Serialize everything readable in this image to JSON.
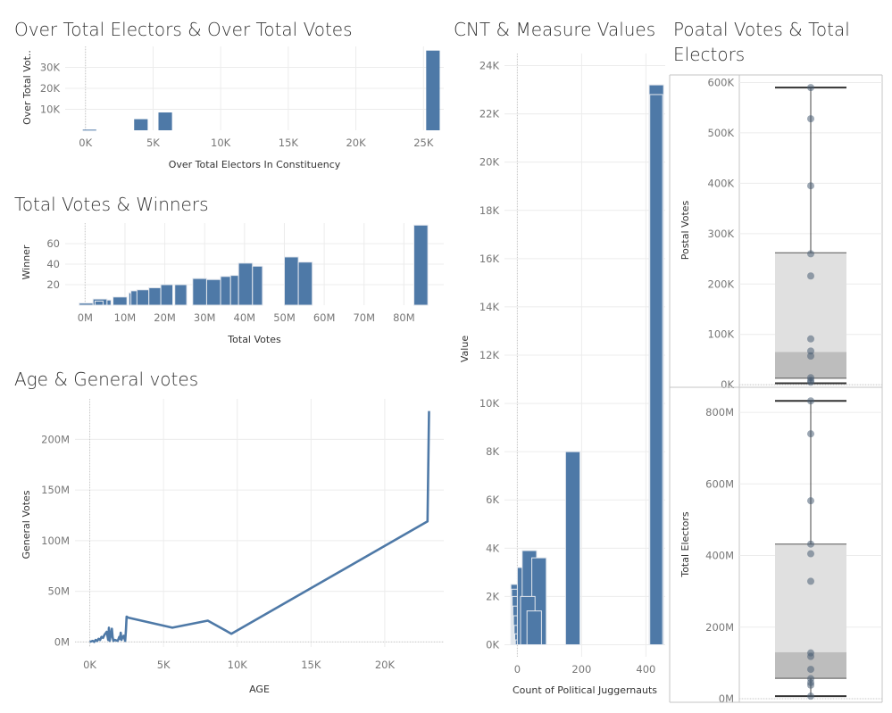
{
  "titles": {
    "electors": "Over Total Electors & Over Total Votes",
    "winners": "Total Votes & Winners",
    "age": "Age & General votes",
    "cnt": "CNT & Measure Values",
    "postal_line1": "Poatal Votes & Total",
    "postal_line2": "Electors"
  },
  "colors": {
    "bar": "#4e79a7",
    "line": "#4e79a7",
    "box_upper": "#e0e0e0",
    "box_lower": "#bdbdbd",
    "point": "#4a5f75"
  },
  "chart_data": [
    {
      "id": "electors",
      "type": "bar",
      "title": "Over Total Electors & Over Total Votes",
      "xlabel": "Over Total Electors  In Constituency",
      "ylabel": "Over Total Vot..",
      "xlim": [
        -1500,
        26500
      ],
      "ylim": [
        0,
        40000
      ],
      "xticks": [
        0,
        5000,
        10000,
        15000,
        20000,
        25000
      ],
      "xtick_labels": [
        "0K",
        "5K",
        "10K",
        "15K",
        "20K",
        "25K"
      ],
      "yticks": [
        10000,
        20000,
        30000
      ],
      "ytick_labels": [
        "10K",
        "20K",
        "30K"
      ],
      "bars": [
        {
          "x0": -200,
          "x1": 800,
          "y": 300
        },
        {
          "x0": 3600,
          "x1": 4600,
          "y": 5300
        },
        {
          "x0": 5400,
          "x1": 6400,
          "y": 8500
        },
        {
          "x0": 25200,
          "x1": 26200,
          "y": 38000
        }
      ]
    },
    {
      "id": "winners",
      "type": "bar",
      "title": "Total Votes & Winners",
      "xlabel": "Total Votes",
      "ylabel": "Winner",
      "xlim": [
        -5,
        90
      ],
      "ylim": [
        0,
        80
      ],
      "xticks": [
        0,
        10,
        20,
        30,
        40,
        50,
        60,
        70,
        80
      ],
      "xtick_labels": [
        "0M",
        "10M",
        "20M",
        "30M",
        "40M",
        "50M",
        "60M",
        "70M",
        "80M"
      ],
      "yticks": [
        20,
        40,
        60
      ],
      "ytick_labels": [
        "20",
        "40",
        "60"
      ],
      "bars": [
        {
          "x0": -1.5,
          "x1": 2,
          "y": 2
        },
        {
          "x0": 2,
          "x1": 5.5,
          "y": 6
        },
        {
          "x0": 2.5,
          "x1": 4.5,
          "y": 4
        },
        {
          "x0": 5.5,
          "x1": 6.5,
          "y": 5
        },
        {
          "x0": 7,
          "x1": 10.5,
          "y": 8
        },
        {
          "x0": 11,
          "x1": 14,
          "y": 12
        },
        {
          "x0": 11.5,
          "x1": 15,
          "y": 14
        },
        {
          "x0": 13,
          "x1": 16,
          "y": 15
        },
        {
          "x0": 16,
          "x1": 19,
          "y": 17
        },
        {
          "x0": 19,
          "x1": 22,
          "y": 20
        },
        {
          "x0": 22.5,
          "x1": 25.5,
          "y": 20
        },
        {
          "x0": 27,
          "x1": 30.5,
          "y": 26
        },
        {
          "x0": 30.5,
          "x1": 34,
          "y": 25
        },
        {
          "x0": 34,
          "x1": 36.5,
          "y": 28
        },
        {
          "x0": 36.5,
          "x1": 38.5,
          "y": 29
        },
        {
          "x0": 38.5,
          "x1": 42,
          "y": 41
        },
        {
          "x0": 42,
          "x1": 44.5,
          "y": 38
        },
        {
          "x0": 50,
          "x1": 53.5,
          "y": 47
        },
        {
          "x0": 53.5,
          "x1": 57,
          "y": 42
        },
        {
          "x0": 82.5,
          "x1": 86,
          "y": 78
        }
      ]
    },
    {
      "id": "age",
      "type": "line",
      "title": "Age & General votes",
      "xlabel": "AGE",
      "ylabel": "General Votes",
      "xlim": [
        -1000,
        24000
      ],
      "ylim": [
        -5,
        240
      ],
      "xticks": [
        0,
        5000,
        10000,
        15000,
        20000
      ],
      "xtick_labels": [
        "0K",
        "5K",
        "10K",
        "15K",
        "20K"
      ],
      "yticks": [
        0,
        50,
        100,
        150,
        200
      ],
      "ytick_labels": [
        "0M",
        "50M",
        "100M",
        "150M",
        "200M"
      ],
      "x": [
        0,
        200,
        300,
        400,
        500,
        600,
        700,
        800,
        900,
        1000,
        1150,
        1250,
        1300,
        1350,
        1500,
        1550,
        1600,
        1700,
        1900,
        2000,
        2050,
        2100,
        2150,
        2200,
        2300,
        2400,
        2450,
        2500,
        2600,
        5600,
        8000,
        9600,
        22900,
        23000
      ],
      "y": [
        0,
        1,
        0,
        2,
        1,
        3,
        2,
        5,
        4,
        7,
        10,
        2,
        14,
        1,
        13,
        5,
        1,
        2,
        1,
        5,
        3,
        9,
        2,
        4,
        6,
        1,
        11,
        25,
        24,
        14,
        21,
        8,
        119,
        228
      ]
    },
    {
      "id": "cnt",
      "type": "bar",
      "title": "CNT & Measure Values",
      "xlabel": "Count of Political Juggernauts",
      "ylabel": "Value",
      "xlim": [
        -40,
        460
      ],
      "ylim": [
        -500,
        24500
      ],
      "xticks": [
        0,
        200,
        400
      ],
      "xtick_labels": [
        "0",
        "200",
        "400"
      ],
      "yticks": [
        0,
        2000,
        4000,
        6000,
        8000,
        10000,
        12000,
        14000,
        16000,
        18000,
        20000,
        22000,
        24000
      ],
      "ytick_labels": [
        "0K",
        "2K",
        "4K",
        "6K",
        "8K",
        "10K",
        "12K",
        "14K",
        "16K",
        "18K",
        "20K",
        "22K",
        "24K"
      ],
      "bars": [
        {
          "x0": -20,
          "x1": 5,
          "y": 2500
        },
        {
          "x0": -18,
          "x1": 8,
          "y": 2300
        },
        {
          "x0": -16,
          "x1": 12,
          "y": 2000
        },
        {
          "x0": -14,
          "x1": 16,
          "y": 1600
        },
        {
          "x0": -12,
          "x1": 20,
          "y": 1200
        },
        {
          "x0": -10,
          "x1": 24,
          "y": 800
        },
        {
          "x0": -8,
          "x1": 28,
          "y": 450
        },
        {
          "x0": -6,
          "x1": 32,
          "y": 200
        },
        {
          "x0": 0,
          "x1": 45,
          "y": 3200
        },
        {
          "x0": 15,
          "x1": 60,
          "y": 3900
        },
        {
          "x0": 45,
          "x1": 90,
          "y": 3600
        },
        {
          "x0": 10,
          "x1": 55,
          "y": 2000
        },
        {
          "x0": 30,
          "x1": 75,
          "y": 1400
        },
        {
          "x0": 150,
          "x1": 195,
          "y": 8000
        },
        {
          "x0": 410,
          "x1": 455,
          "y": 23200
        },
        {
          "x0": 412,
          "x1": 452,
          "y": 22800
        }
      ]
    },
    {
      "id": "postal",
      "type": "scatter",
      "title": "Poatal Votes & Total Electors",
      "ylabel": "Postal Votes",
      "ylim": [
        -5,
        615
      ],
      "yticks": [
        0,
        100,
        200,
        300,
        400,
        500,
        600
      ],
      "ytick_labels": [
        "0K",
        "100K",
        "200K",
        "300K",
        "400K",
        "500K",
        "600K"
      ],
      "box": {
        "whisker_low": 3,
        "q1": 13,
        "median": 65,
        "q3": 262,
        "whisker_high": 590
      },
      "points": [
        590,
        528,
        395,
        260,
        216,
        91,
        67,
        57,
        14,
        9,
        5
      ]
    },
    {
      "id": "electors_box",
      "type": "scatter",
      "ylabel": "Total Electors",
      "ylim": [
        -10,
        870
      ],
      "yticks": [
        0,
        200,
        400,
        600,
        800
      ],
      "ytick_labels": [
        "0M",
        "200M",
        "400M",
        "600M",
        "800M"
      ],
      "box": {
        "whisker_low": 7,
        "q1": 57,
        "median": 130,
        "q3": 432,
        "whisker_high": 832
      },
      "points": [
        832,
        740,
        553,
        432,
        405,
        328,
        128,
        118,
        82,
        56,
        45,
        38,
        7
      ]
    }
  ]
}
